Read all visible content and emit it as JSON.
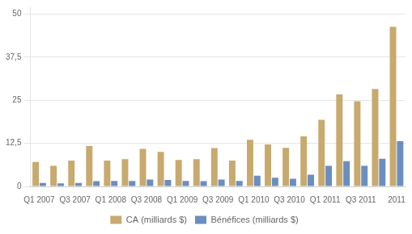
{
  "chart_data": {
    "type": "bar",
    "categories": [
      "Q1 2007",
      null,
      "Q3 2007",
      null,
      "Q1 2008",
      null,
      "Q3 2008",
      null,
      "Q1 2009",
      null,
      "Q3 2009",
      null,
      "Q1 2010",
      null,
      "Q3 2010",
      null,
      "Q1 2011",
      null,
      "Q3 2011",
      null,
      "2011"
    ],
    "series": [
      {
        "name": "CA (milliards $)",
        "color": "#c8a96e",
        "values": [
          7.1,
          6.0,
          7.5,
          11.7,
          7.5,
          7.9,
          10.9,
          10.0,
          7.7,
          7.9,
          11.1,
          7.5,
          13.5,
          12.2,
          11.2,
          14.5,
          19.3,
          26.7,
          24.7,
          28.3,
          46.3
        ]
      },
      {
        "name": "Bénéfices (milliards $)",
        "color": "#6a8ec0",
        "values": [
          1.0,
          0.9,
          1.0,
          1.5,
          1.6,
          1.6,
          2.0,
          1.9,
          1.6,
          1.5,
          2.0,
          1.6,
          3.1,
          2.5,
          2.2,
          3.4,
          6.0,
          7.3,
          6.0,
          8.0,
          13.1
        ]
      }
    ],
    "ylim": [
      0,
      52
    ],
    "yticks": [
      0,
      {
        "value": 12.5,
        "label": "12,5"
      },
      25,
      {
        "value": 37.5,
        "label": "37,5"
      },
      50
    ],
    "grid": true,
    "legend": "bottom"
  }
}
